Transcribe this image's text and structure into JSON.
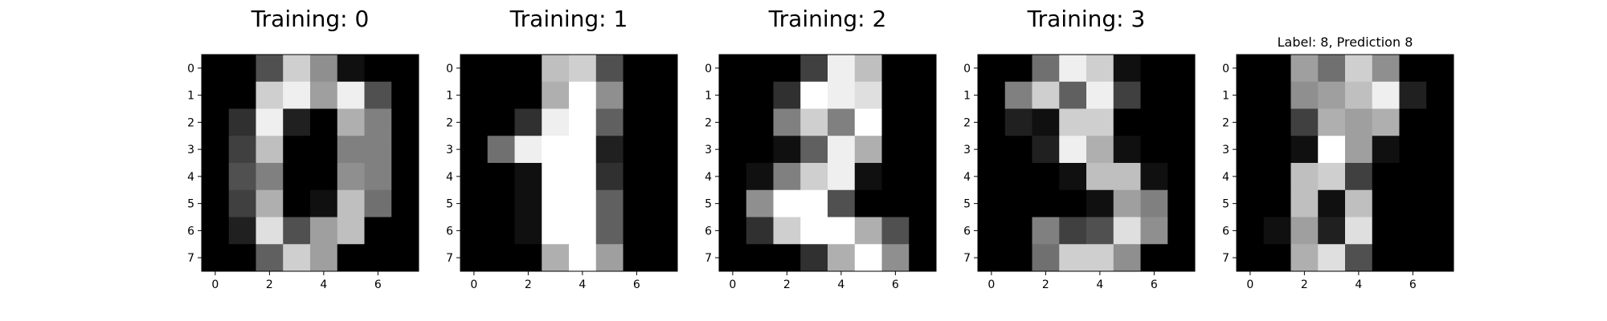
{
  "chart_data": [
    {
      "type": "heatmap",
      "title": "Training: 0",
      "xticks": [
        "0",
        "2",
        "4",
        "6"
      ],
      "yticks": [
        "0",
        "1",
        "2",
        "3",
        "4",
        "5",
        "6",
        "7"
      ],
      "colormap": "gray",
      "value_range": [
        0,
        16
      ],
      "values": [
        [
          0,
          0,
          5,
          13,
          9,
          1,
          0,
          0
        ],
        [
          0,
          0,
          13,
          15,
          10,
          15,
          5,
          0
        ],
        [
          0,
          3,
          15,
          2,
          0,
          11,
          8,
          0
        ],
        [
          0,
          4,
          12,
          0,
          0,
          8,
          8,
          0
        ],
        [
          0,
          5,
          8,
          0,
          0,
          9,
          8,
          0
        ],
        [
          0,
          4,
          11,
          0,
          1,
          12,
          7,
          0
        ],
        [
          0,
          2,
          14,
          5,
          10,
          12,
          0,
          0
        ],
        [
          0,
          0,
          6,
          13,
          10,
          0,
          0,
          0
        ]
      ]
    },
    {
      "type": "heatmap",
      "title": "Training: 1",
      "xticks": [
        "0",
        "2",
        "4",
        "6"
      ],
      "yticks": [
        "0",
        "1",
        "2",
        "3",
        "4",
        "5",
        "6",
        "7"
      ],
      "colormap": "gray",
      "value_range": [
        0,
        16
      ],
      "values": [
        [
          0,
          0,
          0,
          12,
          13,
          5,
          0,
          0
        ],
        [
          0,
          0,
          0,
          11,
          16,
          9,
          0,
          0
        ],
        [
          0,
          0,
          3,
          15,
          16,
          6,
          0,
          0
        ],
        [
          0,
          7,
          15,
          16,
          16,
          2,
          0,
          0
        ],
        [
          0,
          0,
          1,
          16,
          16,
          3,
          0,
          0
        ],
        [
          0,
          0,
          1,
          16,
          16,
          6,
          0,
          0
        ],
        [
          0,
          0,
          1,
          16,
          16,
          6,
          0,
          0
        ],
        [
          0,
          0,
          0,
          11,
          16,
          10,
          0,
          0
        ]
      ]
    },
    {
      "type": "heatmap",
      "title": "Training: 2",
      "xticks": [
        "0",
        "2",
        "4",
        "6"
      ],
      "yticks": [
        "0",
        "1",
        "2",
        "3",
        "4",
        "5",
        "6",
        "7"
      ],
      "colormap": "gray",
      "value_range": [
        0,
        16
      ],
      "values": [
        [
          0,
          0,
          0,
          4,
          15,
          12,
          0,
          0
        ],
        [
          0,
          0,
          3,
          16,
          15,
          14,
          0,
          0
        ],
        [
          0,
          0,
          8,
          13,
          8,
          16,
          0,
          0
        ],
        [
          0,
          0,
          1,
          6,
          15,
          11,
          0,
          0
        ],
        [
          0,
          1,
          8,
          13,
          15,
          1,
          0,
          0
        ],
        [
          0,
          9,
          16,
          16,
          5,
          0,
          0,
          0
        ],
        [
          0,
          3,
          13,
          16,
          16,
          11,
          5,
          0
        ],
        [
          0,
          0,
          0,
          3,
          11,
          16,
          9,
          0
        ]
      ]
    },
    {
      "type": "heatmap",
      "title": "Training: 3",
      "xticks": [
        "0",
        "2",
        "4",
        "6"
      ],
      "yticks": [
        "0",
        "1",
        "2",
        "3",
        "4",
        "5",
        "6",
        "7"
      ],
      "colormap": "gray",
      "value_range": [
        0,
        16
      ],
      "values": [
        [
          0,
          0,
          7,
          15,
          13,
          1,
          0,
          0
        ],
        [
          0,
          8,
          13,
          6,
          15,
          4,
          0,
          0
        ],
        [
          0,
          2,
          1,
          13,
          13,
          0,
          0,
          0
        ],
        [
          0,
          0,
          2,
          15,
          11,
          1,
          0,
          0
        ],
        [
          0,
          0,
          0,
          1,
          12,
          12,
          1,
          0
        ],
        [
          0,
          0,
          0,
          0,
          1,
          10,
          8,
          0
        ],
        [
          0,
          0,
          8,
          4,
          5,
          14,
          9,
          0
        ],
        [
          0,
          0,
          7,
          13,
          13,
          9,
          0,
          0
        ]
      ]
    },
    {
      "type": "heatmap",
      "title": "Label: 8, Prediction 8",
      "xticks": [
        "0",
        "2",
        "4",
        "6"
      ],
      "yticks": [
        "0",
        "1",
        "2",
        "3",
        "4",
        "5",
        "6",
        "7"
      ],
      "colormap": "gray",
      "value_range": [
        0,
        16
      ],
      "values": [
        [
          0,
          0,
          10,
          7,
          13,
          9,
          0,
          0
        ],
        [
          0,
          0,
          9,
          10,
          12,
          15,
          2,
          0
        ],
        [
          0,
          0,
          4,
          11,
          10,
          11,
          0,
          0
        ],
        [
          0,
          0,
          1,
          16,
          10,
          1,
          0,
          0
        ],
        [
          0,
          0,
          12,
          13,
          4,
          0,
          0,
          0
        ],
        [
          0,
          0,
          12,
          1,
          12,
          0,
          0,
          0
        ],
        [
          0,
          1,
          10,
          2,
          14,
          0,
          0,
          0
        ],
        [
          0,
          0,
          11,
          14,
          5,
          0,
          0,
          0
        ]
      ]
    }
  ]
}
